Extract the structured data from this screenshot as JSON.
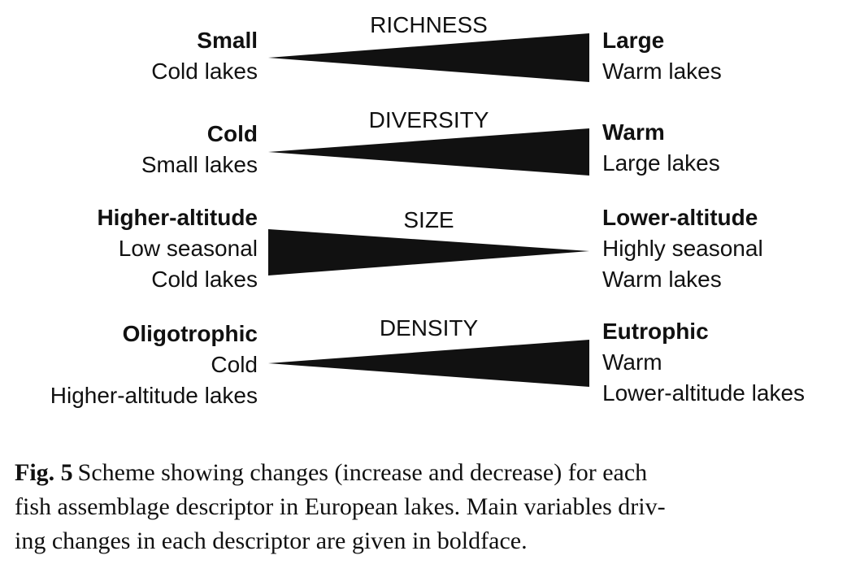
{
  "rows": [
    {
      "descriptor": "RICHNESS",
      "direction": "increase",
      "left": {
        "driver": "Small",
        "lines": [
          "Cold lakes"
        ]
      },
      "right": {
        "driver": "Large",
        "lines": [
          "Warm lakes"
        ]
      }
    },
    {
      "descriptor": "DIVERSITY",
      "direction": "increase",
      "left": {
        "driver": "Cold",
        "lines": [
          "Small lakes"
        ]
      },
      "right": {
        "driver": "Warm",
        "lines": [
          "Large lakes"
        ]
      }
    },
    {
      "descriptor": "SIZE",
      "direction": "decrease",
      "left": {
        "driver": "Higher-altitude",
        "lines": [
          "Low seasonal",
          "Cold lakes"
        ]
      },
      "right": {
        "driver": "Lower-altitude",
        "lines": [
          "Highly seasonal",
          "Warm lakes"
        ]
      }
    },
    {
      "descriptor": "DENSITY",
      "direction": "increase",
      "left": {
        "driver": "Oligotrophic",
        "lines": [
          "Cold",
          "Higher-altitude lakes"
        ]
      },
      "right": {
        "driver": "Eutrophic",
        "lines": [
          "Warm",
          "Lower-altitude lakes"
        ]
      }
    }
  ],
  "caption": {
    "label": "Fig. 5",
    "lines": [
      "Scheme showing changes (increase and decrease) for each",
      "fish assemblage descriptor in European lakes. Main variables driv-",
      "ing changes in each descriptor are given in boldface."
    ]
  },
  "colors": {
    "wedge": "#111111",
    "text": "#111111",
    "background": "#ffffff"
  }
}
